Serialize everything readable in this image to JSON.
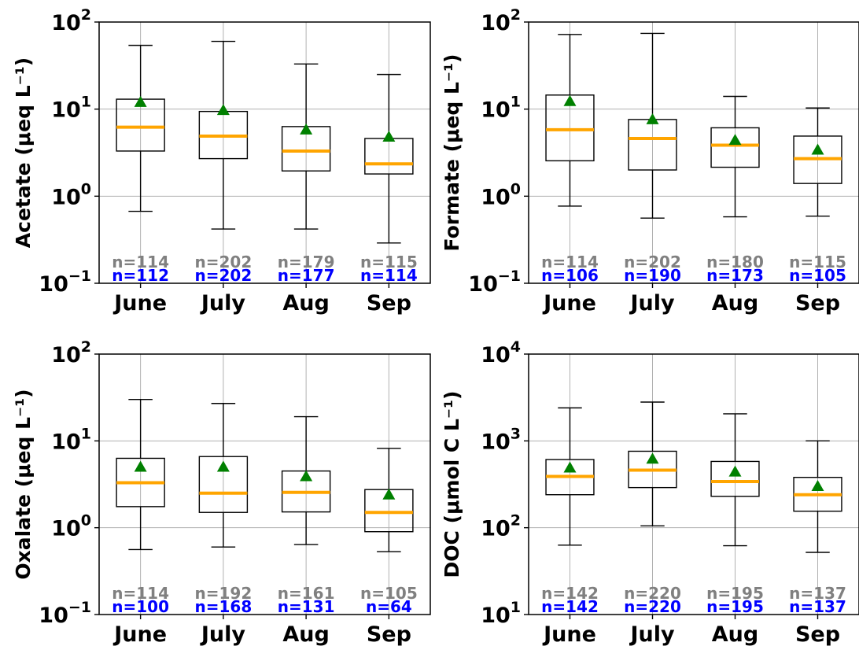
{
  "chart_data": [
    {
      "type": "box",
      "ylabel": "Acetate (μeq L⁻¹)",
      "yscale": "log",
      "ylim": [
        0.1,
        100
      ],
      "yticks": [
        {
          "base": "10",
          "exp": "−1",
          "value": 0.1
        },
        {
          "base": "10",
          "exp": "0",
          "value": 1
        },
        {
          "base": "10",
          "exp": "1",
          "value": 10
        },
        {
          "base": "10",
          "exp": "2",
          "value": 100
        }
      ],
      "grid": true,
      "categories": [
        "June",
        "July",
        "Aug",
        "Sep"
      ],
      "boxes": [
        {
          "whisker_low": 0.67,
          "q1": 3.3,
          "median": 6.2,
          "q3": 13,
          "whisker_high": 54,
          "mean": 12
        },
        {
          "whisker_low": 0.42,
          "q1": 2.7,
          "median": 4.9,
          "q3": 9.4,
          "whisker_high": 60,
          "mean": 9.7
        },
        {
          "whisker_low": 0.42,
          "q1": 1.95,
          "median": 3.3,
          "q3": 6.3,
          "whisker_high": 33,
          "mean": 5.8
        },
        {
          "whisker_low": 0.29,
          "q1": 1.8,
          "median": 2.35,
          "q3": 4.6,
          "whisker_high": 25,
          "mean": 4.8
        }
      ],
      "n_gray": [
        "n=114",
        "n=202",
        "n=179",
        "n=115"
      ],
      "n_blue": [
        "n=112",
        "n=202",
        "n=177",
        "n=114"
      ]
    },
    {
      "type": "box",
      "ylabel": "Formate (μeq L⁻¹)",
      "yscale": "log",
      "ylim": [
        0.1,
        100
      ],
      "yticks": [
        {
          "base": "10",
          "exp": "−1",
          "value": 0.1
        },
        {
          "base": "10",
          "exp": "0",
          "value": 1
        },
        {
          "base": "10",
          "exp": "1",
          "value": 10
        },
        {
          "base": "10",
          "exp": "2",
          "value": 100
        }
      ],
      "grid": true,
      "categories": [
        "June",
        "July",
        "Aug",
        "Sep"
      ],
      "boxes": [
        {
          "whisker_low": 0.77,
          "q1": 2.55,
          "median": 5.8,
          "q3": 14.5,
          "whisker_high": 72,
          "mean": 12.3
        },
        {
          "whisker_low": 0.56,
          "q1": 2.0,
          "median": 4.6,
          "q3": 7.6,
          "whisker_high": 74,
          "mean": 7.6
        },
        {
          "whisker_low": 0.58,
          "q1": 2.15,
          "median": 3.85,
          "q3": 6.1,
          "whisker_high": 14,
          "mean": 4.4
        },
        {
          "whisker_low": 0.59,
          "q1": 1.4,
          "median": 2.7,
          "q3": 4.9,
          "whisker_high": 10.3,
          "mean": 3.4
        }
      ],
      "n_gray": [
        "n=114",
        "n=202",
        "n=180",
        "n=115"
      ],
      "n_blue": [
        "n=106",
        "n=190",
        "n=173",
        "n=105"
      ]
    },
    {
      "type": "box",
      "ylabel": "Oxalate (μeq L⁻¹)",
      "yscale": "log",
      "ylim": [
        0.1,
        100
      ],
      "yticks": [
        {
          "base": "10",
          "exp": "−1",
          "value": 0.1
        },
        {
          "base": "10",
          "exp": "0",
          "value": 1
        },
        {
          "base": "10",
          "exp": "1",
          "value": 10
        },
        {
          "base": "10",
          "exp": "2",
          "value": 100
        }
      ],
      "grid": true,
      "categories": [
        "June",
        "July",
        "Aug",
        "Sep"
      ],
      "boxes": [
        {
          "whisker_low": 0.56,
          "q1": 1.75,
          "median": 3.3,
          "q3": 6.3,
          "whisker_high": 30,
          "mean": 5.0
        },
        {
          "whisker_low": 0.6,
          "q1": 1.5,
          "median": 2.5,
          "q3": 6.6,
          "whisker_high": 27,
          "mean": 5.0
        },
        {
          "whisker_low": 0.64,
          "q1": 1.52,
          "median": 2.55,
          "q3": 4.5,
          "whisker_high": 19,
          "mean": 3.9
        },
        {
          "whisker_low": 0.53,
          "q1": 0.9,
          "median": 1.5,
          "q3": 2.75,
          "whisker_high": 8.2,
          "mean": 2.4
        }
      ],
      "n_gray": [
        "n=114",
        "n=192",
        "n=161",
        "n=105"
      ],
      "n_blue": [
        "n=100",
        "n=168",
        "n=131",
        "n=64"
      ]
    },
    {
      "type": "box",
      "ylabel": "DOC (μmol C L⁻¹)",
      "yscale": "log",
      "ylim": [
        10,
        10000
      ],
      "yticks": [
        {
          "base": "10",
          "exp": "1",
          "value": 10
        },
        {
          "base": "10",
          "exp": "2",
          "value": 100
        },
        {
          "base": "10",
          "exp": "3",
          "value": 1000
        },
        {
          "base": "10",
          "exp": "4",
          "value": 10000
        }
      ],
      "grid": true,
      "categories": [
        "June",
        "July",
        "Aug",
        "Sep"
      ],
      "boxes": [
        {
          "whisker_low": 63,
          "q1": 240,
          "median": 390,
          "q3": 610,
          "whisker_high": 2400,
          "mean": 490
        },
        {
          "whisker_low": 105,
          "q1": 290,
          "median": 460,
          "q3": 760,
          "whisker_high": 2800,
          "mean": 620
        },
        {
          "whisker_low": 62,
          "q1": 230,
          "median": 340,
          "q3": 580,
          "whisker_high": 2050,
          "mean": 440
        },
        {
          "whisker_low": 52,
          "q1": 155,
          "median": 240,
          "q3": 380,
          "whisker_high": 1000,
          "mean": 300
        }
      ],
      "n_gray": [
        "n=142",
        "n=220",
        "n=195",
        "n=137"
      ],
      "n_blue": [
        "n=142",
        "n=220",
        "n=195",
        "n=137"
      ]
    }
  ],
  "colors": {
    "median": "#ffa500",
    "mean": "#008000",
    "n_gray": "#808080",
    "n_blue": "#0000ff",
    "grid": "#b0b0b0",
    "axis": "#000000"
  }
}
